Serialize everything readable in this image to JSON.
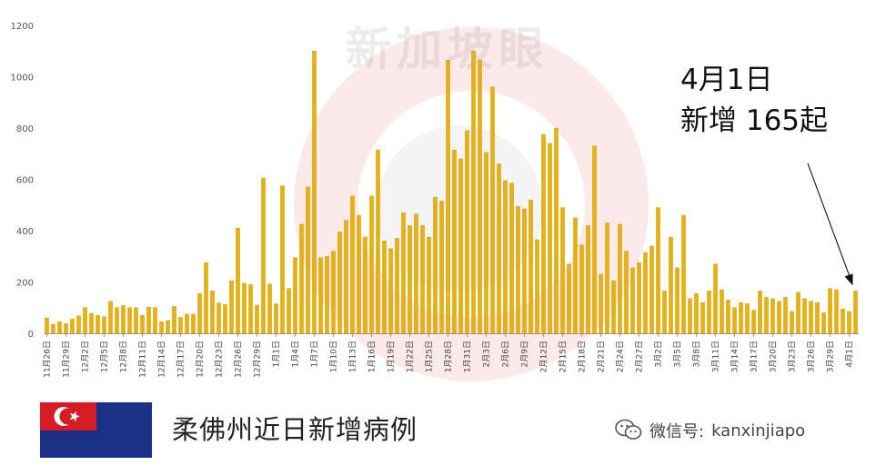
{
  "chart_data": {
    "type": "bar",
    "yticks": [
      0,
      200,
      400,
      600,
      800,
      1000,
      1200
    ],
    "ylim": [
      0,
      1200
    ],
    "xlabels": [
      "11月26日",
      "11月29日",
      "12月2日",
      "12月5日",
      "12月8日",
      "12月11日",
      "12月14日",
      "12月17日",
      "12月20日",
      "12月23日",
      "12月26日",
      "12月29日",
      "1月1日",
      "1月4日",
      "1月7日",
      "1月10日",
      "1月13日",
      "1月16日",
      "1月19日",
      "1月22日",
      "1月25日",
      "1月28日",
      "1月31日",
      "2月3日",
      "2月6日",
      "2月9日",
      "2月12日",
      "2月15日",
      "2月18日",
      "2月21日",
      "2月24日",
      "2月27日",
      "3月2日",
      "3月5日",
      "3月8日",
      "3月11日",
      "3月14日",
      "3月17日",
      "3月20日",
      "3月23日",
      "3月26日",
      "3月29日",
      "4月1日"
    ],
    "values": [
      60,
      35,
      45,
      38,
      55,
      68,
      100,
      78,
      70,
      65,
      125,
      100,
      108,
      100,
      100,
      70,
      102,
      100,
      45,
      50,
      105,
      62,
      75,
      75,
      155,
      275,
      165,
      118,
      112,
      205,
      410,
      195,
      190,
      110,
      605,
      192,
      115,
      575,
      175,
      295,
      425,
      570,
      1100,
      295,
      300,
      320,
      395,
      440,
      535,
      460,
      375,
      535,
      715,
      360,
      330,
      370,
      470,
      420,
      465,
      420,
      375,
      530,
      515,
      1065,
      715,
      680,
      790,
      1100,
      1065,
      705,
      960,
      660,
      595,
      585,
      495,
      485,
      520,
      365,
      775,
      740,
      800,
      490,
      270,
      450,
      345,
      420,
      730,
      230,
      430,
      205,
      425,
      320,
      255,
      275,
      315,
      340,
      490,
      165,
      375,
      255,
      460,
      135,
      155,
      120,
      165,
      270,
      170,
      130,
      100,
      120,
      115,
      90,
      165,
      140,
      135,
      125,
      140,
      85,
      160,
      135,
      125,
      120,
      80,
      175,
      170,
      95,
      85,
      165
    ]
  },
  "annotation": {
    "line1": "4月1日",
    "line2": "新增 165起"
  },
  "caption": "柔佛州近日新增病例",
  "wechat": {
    "prefix": "微信号:",
    "account": "kanxinjiapo"
  },
  "watermark": "新加坡眼",
  "colors": {
    "bar": "#E8B20C",
    "bar_edge": "#C08A00",
    "axis": "#999999",
    "flag_blue": "#1A2F86",
    "flag_red": "#D51B23"
  }
}
